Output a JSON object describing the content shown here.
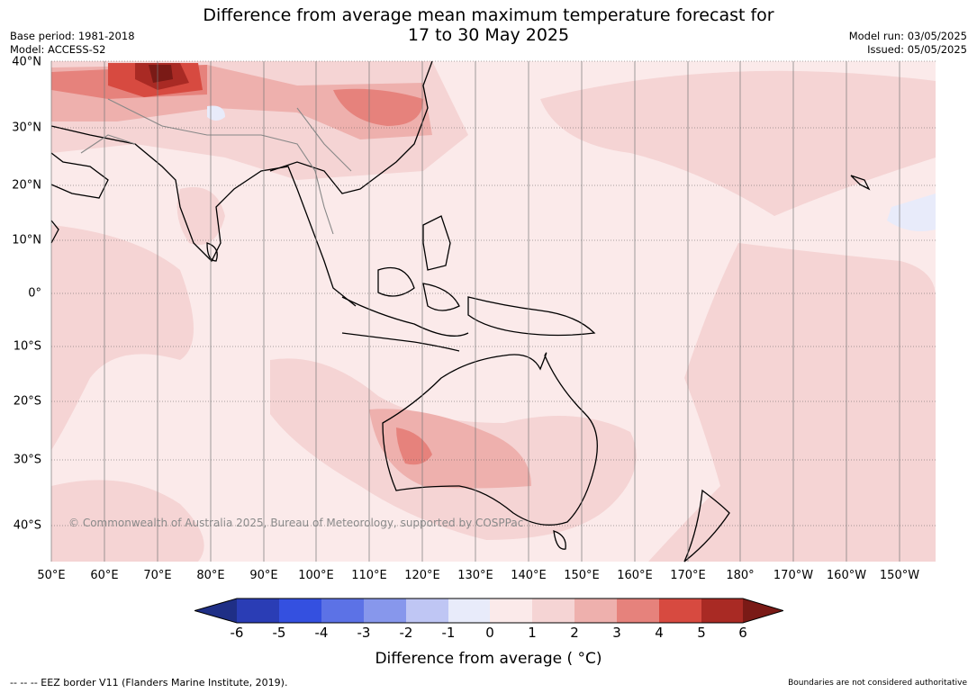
{
  "title_line1": "Difference from average mean maximum temperature forecast for",
  "title_line2": "17 to 30 May 2025",
  "base_period": "Base period: 1981-2018",
  "model": "Model: ACCESS-S2",
  "model_run": "Model run: 03/05/2025",
  "issued": "Issued: 05/05/2025",
  "lat_labels": [
    "40°N",
    "30°N",
    "20°N",
    "10°N",
    "0°",
    "10°S",
    "20°S",
    "30°S",
    "40°S"
  ],
  "lon_labels": [
    "50°E",
    "60°E",
    "70°E",
    "80°E",
    "90°E",
    "100°E",
    "110°E",
    "120°E",
    "130°E",
    "140°E",
    "150°E",
    "160°E",
    "170°E",
    "180°",
    "170°W",
    "160°W",
    "150°W"
  ],
  "copyright": "© Commonwealth of Australia 2025, Bureau of Meteorology, supported by COSPPac",
  "colorbar": {
    "ticks": [
      "-6",
      "-5",
      "-4",
      "-3",
      "-2",
      "-1",
      "0",
      "1",
      "2",
      "3",
      "4",
      "5",
      "6"
    ],
    "colors": [
      "#1f2f86",
      "#2a3db5",
      "#3450e0",
      "#5c72e6",
      "#8797ec",
      "#bfc6f4",
      "#e8ebfa",
      "#fbeaea",
      "#f5d4d4",
      "#eeb0ad",
      "#e6827c",
      "#d74a40",
      "#a92a24",
      "#7a1a16"
    ],
    "label": "Difference from average ( °C)"
  },
  "footer_left": "-- -- -- EEZ border V11 (Flanders Marine Institute, 2019).",
  "footer_right": "Boundaries are not considered authoritative"
}
